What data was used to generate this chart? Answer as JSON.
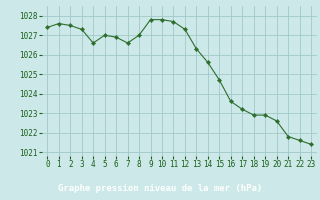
{
  "x": [
    0,
    1,
    2,
    3,
    4,
    5,
    6,
    7,
    8,
    9,
    10,
    11,
    12,
    13,
    14,
    15,
    16,
    17,
    18,
    19,
    20,
    21,
    22,
    23
  ],
  "y": [
    1027.4,
    1027.6,
    1027.5,
    1027.3,
    1026.6,
    1027.0,
    1026.9,
    1026.6,
    1027.0,
    1027.8,
    1027.8,
    1027.7,
    1027.3,
    1026.3,
    1025.6,
    1024.7,
    1023.6,
    1023.2,
    1022.9,
    1022.9,
    1022.6,
    1021.8,
    1021.6,
    1021.4
  ],
  "line_color": "#2d6e2d",
  "marker": "D",
  "marker_size": 2.2,
  "background_color": "#cce8e8",
  "grid_color": "#a0c8c8",
  "xlabel": "Graphe pression niveau de la mer (hPa)",
  "xlabel_bg": "#1a6b1a",
  "xlabel_color": "#ffffff",
  "tick_color": "#1a5f1a",
  "ylim": [
    1020.8,
    1028.5
  ],
  "xlim": [
    -0.5,
    23.5
  ],
  "yticks": [
    1021,
    1022,
    1023,
    1024,
    1025,
    1026,
    1027,
    1028
  ],
  "xticks": [
    0,
    1,
    2,
    3,
    4,
    5,
    6,
    7,
    8,
    9,
    10,
    11,
    12,
    13,
    14,
    15,
    16,
    17,
    18,
    19,
    20,
    21,
    22,
    23
  ]
}
